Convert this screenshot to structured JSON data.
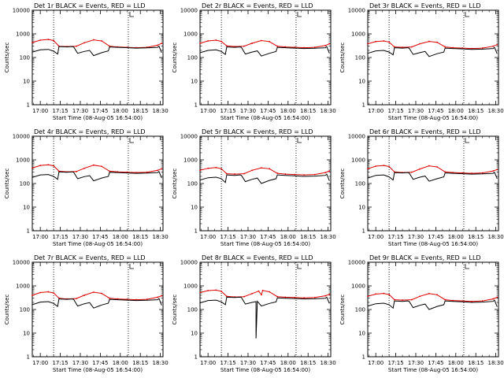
{
  "chart_data": {
    "type": "line",
    "yscale": "log",
    "ylim": [
      1,
      10000
    ],
    "y_ticks": [
      "1",
      "10",
      "100",
      "1000",
      "10000"
    ],
    "x_ticks": [
      "17:00",
      "17:15",
      "17:30",
      "17:45",
      "18:00",
      "18:15",
      "18:30"
    ],
    "xlim": [
      "16:54",
      "18:32"
    ],
    "xlabel": "Start Time (08-Aug-05 16:54:00)",
    "ylabel": "Counts/sec",
    "vertical_markers": [
      "17:10",
      "18:06"
    ],
    "colors": {
      "events": "#000000",
      "lld": "#dd0000"
    },
    "panels": [
      {
        "title": "Det 1r BLACK = Events, RED = LLD",
        "series": [
          {
            "key": "lld",
            "x": [
              "16:54",
              "17:00",
              "17:06",
              "17:10",
              "17:14",
              "17:20",
              "17:27",
              "17:33",
              "17:40",
              "17:46",
              "17:52",
              "17:58",
              "18:05",
              "18:12",
              "18:20",
              "18:28",
              "18:31"
            ],
            "y": [
              430,
              540,
              580,
              520,
              300,
              290,
              300,
              420,
              560,
              500,
              300,
              280,
              270,
              260,
              270,
              330,
              400
            ]
          },
          {
            "key": "events",
            "x": [
              "16:54",
              "17:00",
              "17:06",
              "17:10",
              "17:13",
              "17:14",
              "17:20",
              "17:24",
              "17:25",
              "17:28",
              "17:33",
              "17:37",
              "17:40",
              "17:46",
              "17:51",
              "17:52",
              "17:58",
              "18:05",
              "18:12",
              "18:20",
              "18:28",
              "18:29",
              "18:31"
            ],
            "y": [
              170,
              210,
              220,
              185,
              140,
              290,
              280,
              290,
              280,
              150,
              180,
              200,
              120,
              160,
              190,
              280,
              270,
              260,
              250,
              255,
              270,
              300,
              160
            ]
          }
        ]
      },
      {
        "title": "Det 2r BLACK = Events, RED = LLD",
        "series": [
          {
            "key": "lld",
            "x": [
              "16:54",
              "17:00",
              "17:06",
              "17:10",
              "17:14",
              "17:20",
              "17:27",
              "17:33",
              "17:40",
              "17:46",
              "17:52",
              "17:58",
              "18:05",
              "18:12",
              "18:20",
              "18:28",
              "18:31"
            ],
            "y": [
              400,
              500,
              540,
              480,
              310,
              290,
              300,
              400,
              520,
              470,
              300,
              280,
              270,
              260,
              270,
              320,
              380
            ]
          },
          {
            "key": "events",
            "x": [
              "16:54",
              "17:00",
              "17:06",
              "17:10",
              "17:13",
              "17:14",
              "17:20",
              "17:24",
              "17:25",
              "17:28",
              "17:33",
              "17:37",
              "17:40",
              "17:46",
              "17:51",
              "17:52",
              "17:58",
              "18:05",
              "18:12",
              "18:20",
              "18:28",
              "18:29",
              "18:31"
            ],
            "y": [
              160,
              200,
              210,
              180,
              135,
              280,
              270,
              280,
              270,
              140,
              170,
              190,
              115,
              150,
              180,
              270,
              260,
              250,
              240,
              245,
              260,
              290,
              150
            ]
          }
        ]
      },
      {
        "title": "Det 3r BLACK = Events, RED = LLD",
        "series": [
          {
            "key": "lld",
            "x": [
              "16:54",
              "17:00",
              "17:06",
              "17:10",
              "17:14",
              "17:20",
              "17:27",
              "17:33",
              "17:40",
              "17:46",
              "17:52",
              "17:58",
              "18:05",
              "18:12",
              "18:20",
              "18:28",
              "18:31"
            ],
            "y": [
              380,
              470,
              500,
              450,
              280,
              270,
              280,
              380,
              480,
              440,
              280,
              260,
              250,
              240,
              250,
              300,
              350
            ]
          },
          {
            "key": "events",
            "x": [
              "16:54",
              "17:00",
              "17:06",
              "17:10",
              "17:13",
              "17:14",
              "17:20",
              "17:24",
              "17:25",
              "17:28",
              "17:33",
              "17:37",
              "17:40",
              "17:46",
              "17:51",
              "17:52",
              "17:58",
              "18:05",
              "18:12",
              "18:20",
              "18:28",
              "18:29",
              "18:31"
            ],
            "y": [
              150,
              190,
              200,
              170,
              130,
              260,
              250,
              260,
              250,
              135,
              160,
              180,
              110,
              145,
              170,
              250,
              240,
              230,
              220,
              225,
              240,
              270,
              145
            ]
          }
        ]
      },
      {
        "title": "Det 4r BLACK = Events, RED = LLD",
        "series": [
          {
            "key": "lld",
            "x": [
              "16:54",
              "17:00",
              "17:06",
              "17:10",
              "17:14",
              "17:20",
              "17:27",
              "17:33",
              "17:40",
              "17:46",
              "17:52",
              "17:58",
              "18:05",
              "18:12",
              "18:20",
              "18:28",
              "18:31"
            ],
            "y": [
              450,
              580,
              620,
              560,
              330,
              310,
              320,
              440,
              600,
              530,
              330,
              310,
              300,
              290,
              300,
              360,
              420
            ]
          },
          {
            "key": "events",
            "x": [
              "16:54",
              "17:00",
              "17:06",
              "17:10",
              "17:13",
              "17:14",
              "17:20",
              "17:24",
              "17:25",
              "17:28",
              "17:33",
              "17:37",
              "17:40",
              "17:46",
              "17:51",
              "17:52",
              "17:58",
              "18:05",
              "18:12",
              "18:20",
              "18:28",
              "18:29",
              "18:31"
            ],
            "y": [
              180,
              230,
              240,
              200,
              150,
              310,
              300,
              310,
              300,
              160,
              195,
              215,
              130,
              170,
              200,
              300,
              290,
              280,
              270,
              275,
              290,
              320,
              170
            ]
          }
        ]
      },
      {
        "title": "Det 5r BLACK = Events, RED = LLD",
        "series": [
          {
            "key": "lld",
            "x": [
              "16:54",
              "17:00",
              "17:06",
              "17:10",
              "17:14",
              "17:20",
              "17:27",
              "17:33",
              "17:40",
              "17:46",
              "17:52",
              "17:58",
              "18:05",
              "18:12",
              "18:20",
              "18:28",
              "18:31"
            ],
            "y": [
              360,
              440,
              470,
              420,
              260,
              250,
              260,
              360,
              460,
              420,
              270,
              250,
              240,
              230,
              240,
              290,
              340
            ]
          },
          {
            "key": "events",
            "x": [
              "16:54",
              "17:00",
              "17:06",
              "17:10",
              "17:13",
              "17:14",
              "17:20",
              "17:24",
              "17:25",
              "17:28",
              "17:33",
              "17:37",
              "17:40",
              "17:46",
              "17:51",
              "17:52",
              "17:58",
              "18:05",
              "18:12",
              "18:20",
              "18:28",
              "18:29",
              "18:31"
            ],
            "y": [
              140,
              175,
              185,
              160,
              110,
              230,
              220,
              230,
              220,
              120,
              150,
              170,
              100,
              135,
              160,
              230,
              220,
              210,
              200,
              205,
              220,
              250,
              130
            ]
          }
        ]
      },
      {
        "title": "Det 6r BLACK = Events, RED = LLD",
        "series": [
          {
            "key": "lld",
            "x": [
              "16:54",
              "17:00",
              "17:06",
              "17:10",
              "17:14",
              "17:20",
              "17:27",
              "17:33",
              "17:40",
              "17:46",
              "17:52",
              "17:58",
              "18:05",
              "18:12",
              "18:20",
              "18:28",
              "18:31"
            ],
            "y": [
              420,
              540,
              580,
              520,
              310,
              290,
              300,
              410,
              560,
              500,
              310,
              290,
              280,
              270,
              280,
              340,
              390
            ]
          },
          {
            "key": "events",
            "x": [
              "16:54",
              "17:00",
              "17:06",
              "17:10",
              "17:13",
              "17:14",
              "17:20",
              "17:24",
              "17:25",
              "17:28",
              "17:33",
              "17:37",
              "17:40",
              "17:46",
              "17:51",
              "17:52",
              "17:58",
              "18:05",
              "18:12",
              "18:20",
              "18:28",
              "18:29",
              "18:31"
            ],
            "y": [
              170,
              220,
              230,
              190,
              140,
              290,
              280,
              290,
              280,
              150,
              185,
              205,
              125,
              160,
              190,
              280,
              270,
              260,
              250,
              255,
              270,
              300,
              160
            ]
          }
        ]
      },
      {
        "title": "Det 7r BLACK = Events, RED = LLD",
        "series": [
          {
            "key": "lld",
            "x": [
              "16:54",
              "17:00",
              "17:06",
              "17:10",
              "17:14",
              "17:20",
              "17:27",
              "17:33",
              "17:40",
              "17:46",
              "17:52",
              "17:58",
              "18:05",
              "18:12",
              "18:20",
              "18:28",
              "18:31"
            ],
            "y": [
              400,
              520,
              560,
              500,
              300,
              280,
              290,
              400,
              540,
              480,
              300,
              280,
              270,
              260,
              270,
              330,
              380
            ]
          },
          {
            "key": "events",
            "x": [
              "16:54",
              "17:00",
              "17:06",
              "17:10",
              "17:13",
              "17:14",
              "17:20",
              "17:24",
              "17:25",
              "17:28",
              "17:33",
              "17:37",
              "17:40",
              "17:46",
              "17:51",
              "17:52",
              "17:58",
              "18:05",
              "18:12",
              "18:20",
              "18:28",
              "18:29",
              "18:31"
            ],
            "y": [
              160,
              205,
              215,
              180,
              135,
              280,
              270,
              280,
              270,
              140,
              175,
              195,
              115,
              155,
              185,
              270,
              260,
              250,
              240,
              245,
              260,
              290,
              150
            ]
          }
        ]
      },
      {
        "title": "Det 8r BLACK = Events, RED = LLD",
        "series": [
          {
            "key": "lld",
            "x": [
              "16:54",
              "17:00",
              "17:06",
              "17:10",
              "17:14",
              "17:20",
              "17:27",
              "17:33",
              "17:38",
              "17:40",
              "17:41",
              "17:46",
              "17:52",
              "17:58",
              "18:05",
              "18:12",
              "18:20",
              "18:28",
              "18:31"
            ],
            "y": [
              520,
              630,
              660,
              590,
              360,
              340,
              350,
              470,
              600,
              420,
              640,
              560,
              350,
              330,
              320,
              310,
              320,
              380,
              440
            ]
          },
          {
            "key": "events",
            "x": [
              "16:54",
              "17:00",
              "17:06",
              "17:10",
              "17:13",
              "17:14",
              "17:20",
              "17:24",
              "17:25",
              "17:28",
              "17:33",
              "17:36",
              "17:36",
              "17:37",
              "17:40",
              "17:46",
              "17:51",
              "17:52",
              "17:58",
              "18:05",
              "18:12",
              "18:20",
              "18:28",
              "18:29",
              "18:31"
            ],
            "y": [
              190,
              240,
              250,
              210,
              160,
              330,
              320,
              330,
              320,
              170,
              200,
              215,
              6,
              220,
              140,
              180,
              210,
              310,
              300,
              290,
              280,
              285,
              300,
              330,
              180
            ]
          }
        ]
      },
      {
        "title": "Det 9r BLACK = Events, RED = LLD",
        "series": [
          {
            "key": "lld",
            "x": [
              "16:54",
              "17:00",
              "17:06",
              "17:10",
              "17:14",
              "17:20",
              "17:27",
              "17:33",
              "17:40",
              "17:46",
              "17:52",
              "17:58",
              "18:05",
              "18:12",
              "18:20",
              "18:28",
              "18:31"
            ],
            "y": [
              360,
              450,
              480,
              430,
              260,
              250,
              260,
              360,
              470,
              420,
              260,
              240,
              230,
              220,
              230,
              280,
              330
            ]
          },
          {
            "key": "events",
            "x": [
              "16:54",
              "17:00",
              "17:06",
              "17:10",
              "17:13",
              "17:14",
              "17:20",
              "17:24",
              "17:25",
              "17:28",
              "17:33",
              "17:37",
              "17:40",
              "17:46",
              "17:51",
              "17:52",
              "17:58",
              "18:05",
              "18:12",
              "18:20",
              "18:28",
              "18:29",
              "18:31"
            ],
            "y": [
              140,
              175,
              185,
              160,
              115,
              230,
              220,
              230,
              220,
              120,
              150,
              170,
              100,
              135,
              160,
              230,
              220,
              210,
              200,
              205,
              220,
              250,
              130
            ]
          }
        ]
      }
    ]
  }
}
